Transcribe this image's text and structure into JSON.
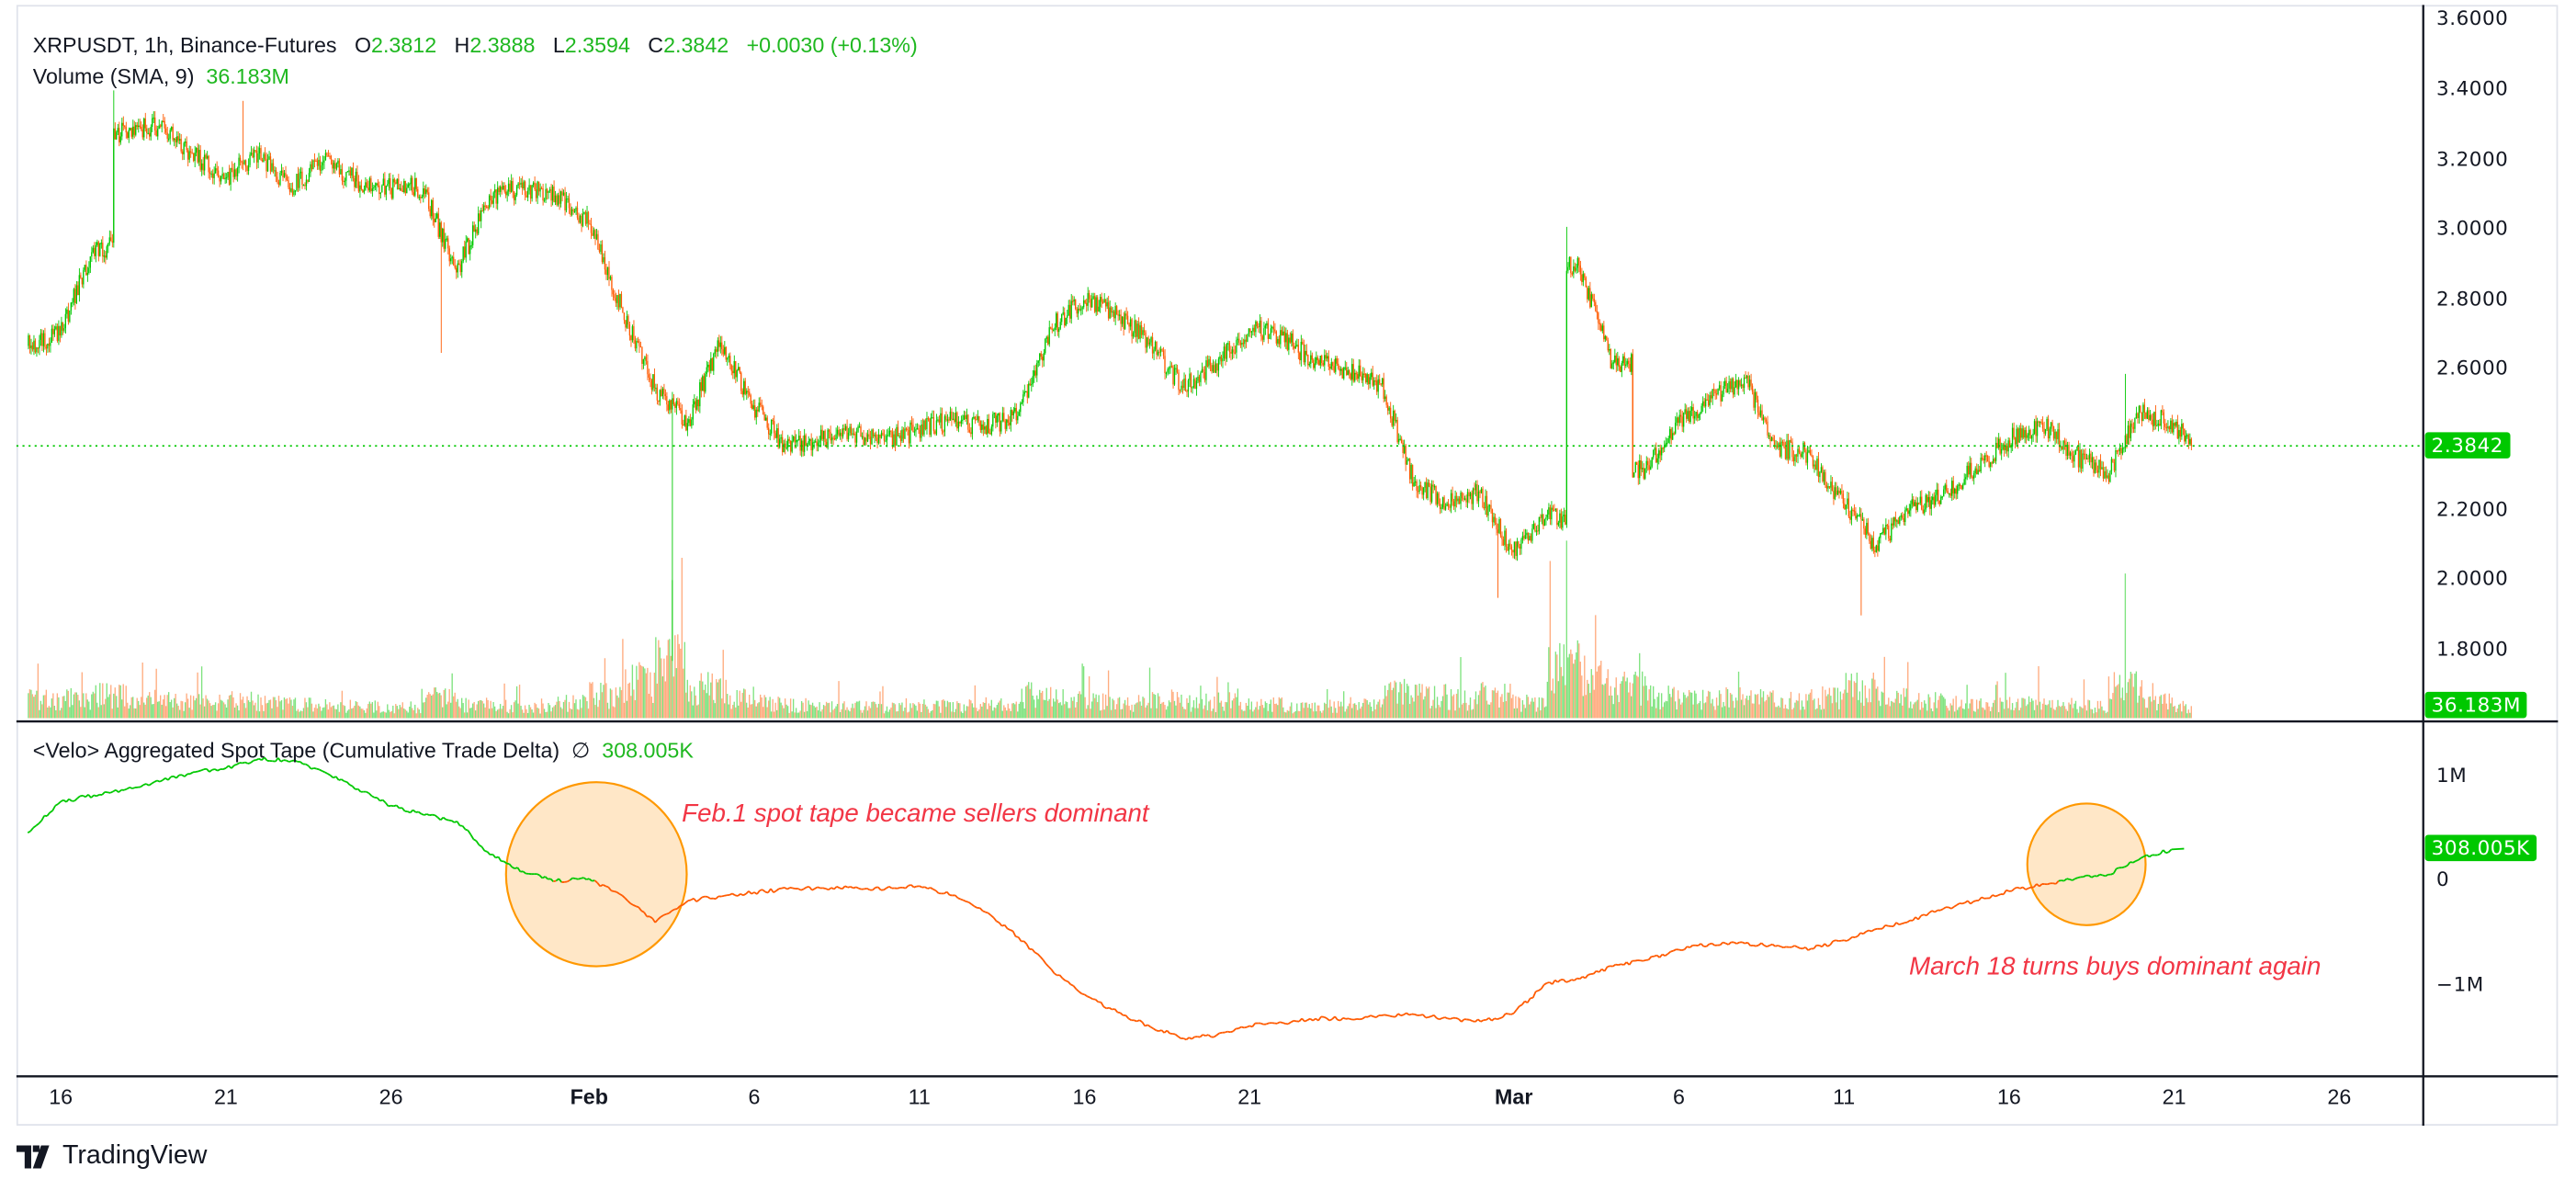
{
  "header": {
    "symbol": "XRPUSDT, 1h, Binance-Futures",
    "open_label": "O",
    "open": "2.3812",
    "high_label": "H",
    "high": "2.3888",
    "low_label": "L",
    "low": "2.3594",
    "close_label": "C",
    "close": "2.3842",
    "change": "+0.0030 (+0.13%)"
  },
  "volume_legend": {
    "label": "Volume (SMA, 9)",
    "value": "36.183M"
  },
  "indicator_legend": {
    "label": "<Velo> Aggregated Spot Tape (Cumulative Trade Delta)",
    "symbol": "∅",
    "value": "308.005K"
  },
  "price_axis": {
    "ticks": [
      "3.6000",
      "3.4000",
      "3.2000",
      "3.0000",
      "2.8000",
      "2.6000",
      "2.2000",
      "2.0000",
      "1.8000"
    ],
    "last_price_tag": "2.3842",
    "volume_tag": "36.183M"
  },
  "indicator_axis": {
    "ticks": [
      "1M",
      "0",
      "−1M"
    ],
    "value_tag": "308.005K"
  },
  "time_axis": {
    "ticks": [
      "16",
      "21",
      "26",
      "Feb",
      "6",
      "11",
      "16",
      "21",
      "Mar",
      "6",
      "11",
      "16",
      "21",
      "26"
    ]
  },
  "annotations": [
    {
      "text": "Feb.1 spot tape became sellers dominant"
    },
    {
      "text": "March 18 turns buys dominant again"
    }
  ],
  "branding": {
    "logo_text": "TradingView"
  },
  "colors": {
    "up": "#00c800",
    "down": "#ff5a00",
    "highlight_stroke": "#ff9800",
    "highlight_fill": "#ffe7c7",
    "annotation": "#f23645",
    "last_price": "#00c800"
  },
  "chart_data": [
    {
      "type": "candlestick",
      "interval": "1h",
      "symbol": "XRPUSDT",
      "ylim": [
        1.7,
        3.62
      ],
      "daily": {
        "dates": [
          "Jan 15",
          "Jan 16",
          "Jan 17",
          "Jan 18",
          "Jan 19",
          "Jan 20",
          "Jan 21",
          "Jan 22",
          "Jan 23",
          "Jan 24",
          "Jan 25",
          "Jan 26",
          "Jan 27",
          "Jan 28",
          "Jan 29",
          "Jan 30",
          "Jan 31",
          "Feb 1",
          "Feb 2",
          "Feb 3",
          "Feb 4",
          "Feb 5",
          "Feb 6",
          "Feb 7",
          "Feb 8",
          "Feb 9",
          "Feb 10",
          "Feb 11",
          "Feb 12",
          "Feb 13",
          "Feb 14",
          "Feb 15",
          "Feb 16",
          "Feb 17",
          "Feb 18",
          "Feb 19",
          "Feb 20",
          "Feb 21",
          "Feb 22",
          "Feb 23",
          "Feb 24",
          "Feb 25",
          "Feb 26",
          "Feb 27",
          "Feb 28",
          "Mar 1",
          "Mar 2",
          "Mar 3",
          "Mar 4",
          "Mar 5",
          "Mar 6",
          "Mar 7",
          "Mar 8",
          "Mar 9",
          "Mar 10",
          "Mar 11",
          "Mar 12",
          "Mar 13",
          "Mar 14",
          "Mar 15",
          "Mar 16",
          "Mar 17",
          "Mar 18",
          "Mar 19",
          "Mar 20",
          "Mar 21"
        ],
        "close": [
          2.7,
          2.95,
          3.28,
          3.3,
          3.22,
          3.15,
          3.22,
          3.12,
          3.2,
          3.14,
          3.12,
          3.12,
          2.88,
          3.1,
          3.12,
          3.1,
          3.02,
          2.78,
          2.55,
          2.45,
          2.68,
          2.5,
          2.38,
          2.4,
          2.42,
          2.4,
          2.43,
          2.46,
          2.44,
          2.47,
          2.72,
          2.8,
          2.76,
          2.68,
          2.55,
          2.62,
          2.72,
          2.7,
          2.62,
          2.6,
          2.56,
          2.28,
          2.22,
          2.25,
          2.08,
          2.18,
          2.9,
          2.62,
          2.32,
          2.45,
          2.52,
          2.58,
          2.38,
          2.36,
          2.22,
          2.1,
          2.2,
          2.24,
          2.32,
          2.4,
          2.45,
          2.36,
          2.3,
          2.48,
          2.45,
          2.3842
        ],
        "volume_m": [
          55,
          60,
          70,
          55,
          50,
          45,
          55,
          45,
          40,
          38,
          35,
          32,
          60,
          40,
          35,
          30,
          45,
          70,
          110,
          160,
          90,
          60,
          45,
          38,
          35,
          33,
          35,
          38,
          36,
          40,
          70,
          60,
          50,
          45,
          55,
          45,
          50,
          40,
          35,
          35,
          40,
          75,
          70,
          55,
          70,
          45,
          150,
          120,
          90,
          65,
          55,
          60,
          60,
          50,
          60,
          90,
          60,
          50,
          45,
          40,
          45,
          40,
          35,
          90,
          50,
          35
        ]
      },
      "extremes": [
        {
          "date": "Jan 17",
          "high": 3.4
        },
        {
          "date": "Jan 21",
          "high": 3.37
        },
        {
          "date": "Jan 27",
          "low": 2.65
        },
        {
          "date": "Feb 3",
          "low": 1.77
        },
        {
          "date": "Feb 28",
          "low": 1.95
        },
        {
          "date": "Mar 2",
          "high": 3.01
        },
        {
          "date": "Mar 11",
          "low": 1.9
        },
        {
          "date": "Mar 19",
          "high": 2.59
        }
      ],
      "volume_peaks_m": [
        {
          "date": "Feb 3",
          "value": 420
        },
        {
          "date": "Mar 2",
          "value": 540
        },
        {
          "date": "Mar 19",
          "value": 440
        }
      ],
      "last_price": 2.3842
    },
    {
      "type": "line",
      "name": "<Velo> Aggregated Spot Tape (Cumulative Trade Delta)",
      "unit": "M",
      "ylim": [
        -1.9,
        1.2
      ],
      "color_rule": "green above 0, orange below 0",
      "values": [
        0.46,
        0.76,
        0.82,
        0.88,
        0.95,
        1.04,
        1.08,
        1.17,
        1.15,
        1.04,
        0.88,
        0.72,
        0.63,
        0.57,
        0.25,
        0.09,
        0.0,
        0.02,
        -0.14,
        -0.4,
        -0.19,
        -0.15,
        -0.11,
        -0.08,
        -0.07,
        -0.07,
        -0.07,
        -0.05,
        -0.14,
        -0.3,
        -0.54,
        -0.85,
        -1.09,
        -1.26,
        -1.4,
        -1.51,
        -1.48,
        -1.39,
        -1.36,
        -1.32,
        -1.32,
        -1.29,
        -1.28,
        -1.32,
        -1.35,
        -1.27,
        -0.98,
        -0.94,
        -0.82,
        -0.76,
        -0.66,
        -0.6,
        -0.6,
        -0.62,
        -0.65,
        -0.57,
        -0.46,
        -0.38,
        -0.27,
        -0.19,
        -0.1,
        -0.03,
        0.02,
        0.06,
        0.22,
        0.308
      ]
    }
  ]
}
